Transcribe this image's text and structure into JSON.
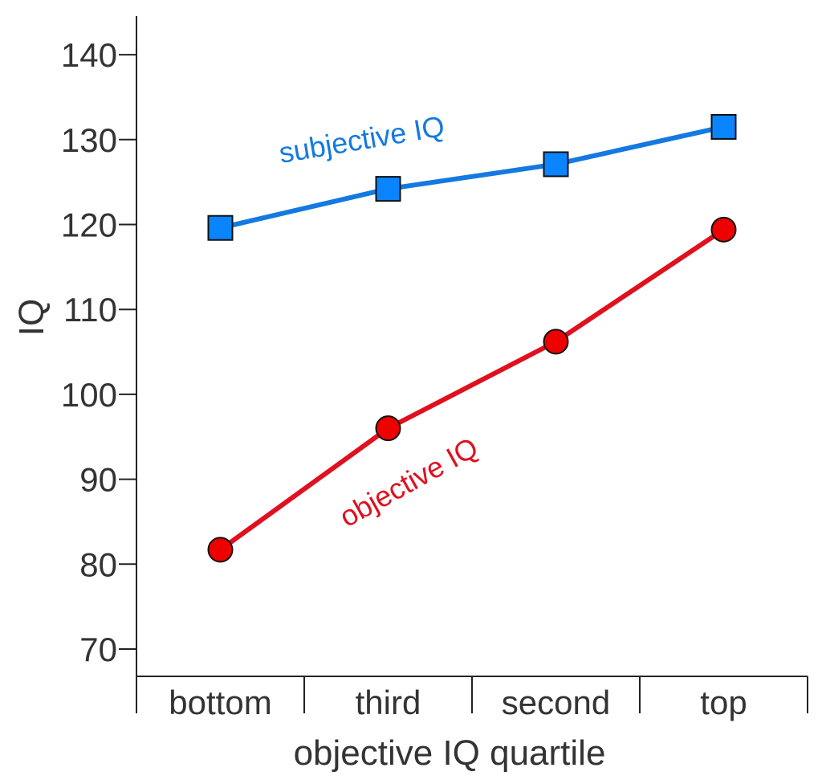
{
  "chart_data": {
    "type": "line",
    "categories": [
      "bottom",
      "third",
      "second",
      "top"
    ],
    "xlabel": "objective IQ quartile",
    "ylabel": "IQ",
    "ylim": [
      67,
      143
    ],
    "yticks": [
      70,
      80,
      90,
      100,
      110,
      120,
      130,
      140
    ],
    "grid": false,
    "legend": "inline labels",
    "series": [
      {
        "name": "subjective IQ",
        "values": [
          119.6,
          124.2,
          127.1,
          131.5
        ],
        "color": "#1479e0",
        "marker": "square",
        "marker_color": "#0a84ff"
      },
      {
        "name": "objective IQ",
        "values": [
          81.7,
          96.0,
          106.2,
          119.4
        ],
        "color": "#e0101e",
        "marker": "circle",
        "marker_color": "#ee0000"
      }
    ]
  }
}
